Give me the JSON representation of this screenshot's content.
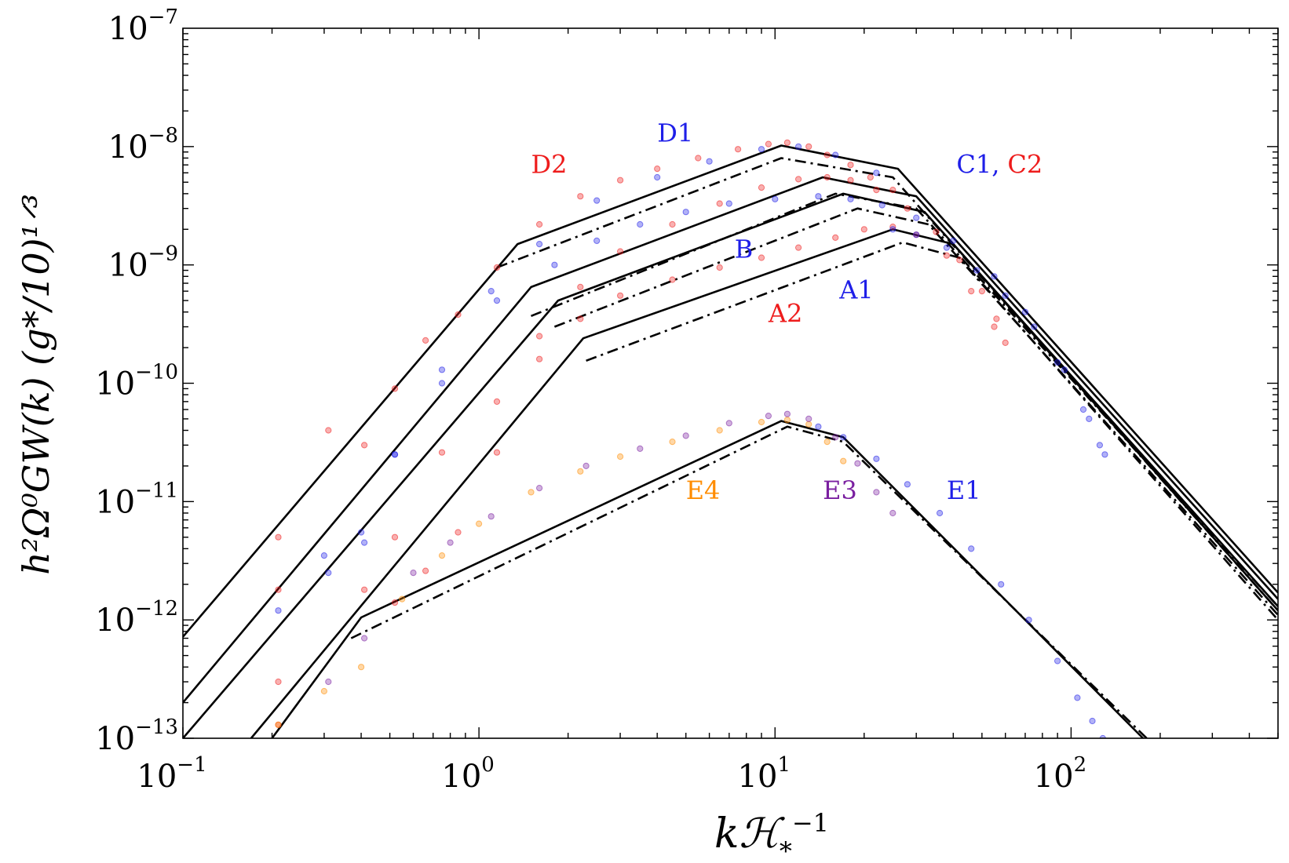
{
  "chart_data": {
    "type": "line",
    "xlabel": "kℋ",
    "xlabel_sub": "*",
    "xlabel_sup": "−1",
    "ylabel": "h²Ω⁰GW(k) (g*/10)¹ᐟ³",
    "x_scale": "log",
    "y_scale": "log",
    "xlim": [
      0.1,
      500
    ],
    "ylim": [
      1e-13,
      1e-07
    ],
    "x_ticks": [
      {
        "value": 0.1,
        "base": "10",
        "exp": "−1"
      },
      {
        "value": 1,
        "base": "10",
        "exp": "0"
      },
      {
        "value": 10,
        "base": "10",
        "exp": "1"
      },
      {
        "value": 100,
        "base": "10",
        "exp": "2"
      }
    ],
    "y_ticks": [
      {
        "value": 1e-07,
        "base": "10",
        "exp": "−7"
      },
      {
        "value": 1e-08,
        "base": "10",
        "exp": "−8"
      },
      {
        "value": 1e-09,
        "base": "10",
        "exp": "−9"
      },
      {
        "value": 1e-10,
        "base": "10",
        "exp": "−10"
      },
      {
        "value": 1e-11,
        "base": "10",
        "exp": "−11"
      },
      {
        "value": 1e-12,
        "base": "10",
        "exp": "−12"
      },
      {
        "value": 1e-13,
        "base": "10",
        "exp": "−13"
      }
    ],
    "grid": false,
    "colors": {
      "blue": "#1f1fe8",
      "red": "#ee1c1c",
      "orange": "#ff8c00",
      "purple": "#7a1fa0",
      "black": "#000000"
    },
    "annotations": [
      {
        "text": "D1",
        "color": "#1f1fe8",
        "x": 4.0,
        "y": 1.1e-08
      },
      {
        "text": "D2",
        "color": "#ee1c1c",
        "x": 1.5,
        "y": 6e-09
      },
      {
        "text": "C1,",
        "color": "#1f1fe8",
        "x": 41,
        "y": 6e-09
      },
      {
        "text": "C2",
        "color": "#ee1c1c",
        "x": 61,
        "y": 6e-09
      },
      {
        "text": "B",
        "color": "#1f1fe8",
        "x": 7.3,
        "y": 1.15e-09
      },
      {
        "text": "A1",
        "color": "#1f1fe8",
        "x": 16.5,
        "y": 5.2e-10
      },
      {
        "text": "A2",
        "color": "#ee1c1c",
        "x": 9.5,
        "y": 3.3e-10
      },
      {
        "text": "E4",
        "color": "#ff8c00",
        "x": 5.0,
        "y": 1.05e-11
      },
      {
        "text": "E3",
        "color": "#7a1fa0",
        "x": 14.5,
        "y": 1.05e-11
      },
      {
        "text": "E1",
        "color": "#1f1fe8",
        "x": 38,
        "y": 1.05e-11
      }
    ],
    "series": [
      {
        "style": "solid",
        "color": "#000000",
        "x": [
          0.1,
          1.35,
          10.5,
          26,
          500
        ],
        "y": [
          7.2e-13,
          1.5e-09,
          1.02e-08,
          6.5e-09,
          1.7e-12
        ]
      },
      {
        "style": "dashdot",
        "color": "#000000",
        "x": [
          1.15,
          10.5,
          25,
          500
        ],
        "y": [
          9.5e-10,
          8e-09,
          5.5e-09,
          1.2e-12
        ]
      },
      {
        "style": "solid",
        "color": "#000000",
        "x": [
          0.1,
          1.5,
          14.5,
          30,
          500
        ],
        "y": [
          2e-13,
          6.5e-10,
          5.5e-09,
          3.8e-09,
          1.5e-12
        ]
      },
      {
        "style": "dashdot",
        "color": "#000000",
        "x": [
          1.5,
          16,
          30,
          500
        ],
        "y": [
          3.7e-10,
          4e-09,
          3e-09,
          1.3e-12
        ]
      },
      {
        "style": "solid",
        "color": "#000000",
        "x": [
          0.1,
          1.85,
          17,
          32,
          500
        ],
        "y": [
          1e-13,
          5e-10,
          4e-09,
          2.8e-09,
          1.3e-12
        ]
      },
      {
        "style": "dashdot",
        "color": "#000000",
        "x": [
          1.8,
          19,
          33,
          500
        ],
        "y": [
          3e-10,
          3e-09,
          2.2e-09,
          1.1e-12
        ]
      },
      {
        "style": "solid",
        "color": "#000000",
        "x": [
          0.17,
          2.25,
          25,
          40,
          500
        ],
        "y": [
          1e-13,
          2.4e-10,
          2e-09,
          1.5e-09,
          1.2e-12
        ]
      },
      {
        "style": "dashdot",
        "color": "#000000",
        "x": [
          2.3,
          27,
          42,
          500
        ],
        "y": [
          1.55e-10,
          1.55e-09,
          1.15e-09,
          1e-12
        ]
      },
      {
        "style": "solid",
        "color": "#000000",
        "x": [
          0.2,
          0.4,
          10.5,
          17,
          175
        ],
        "y": [
          1e-13,
          1.05e-12,
          4.8e-11,
          3.5e-11,
          1e-13
        ]
      },
      {
        "style": "dashdot",
        "color": "#000000",
        "x": [
          0.37,
          11,
          17,
          180
        ],
        "y": [
          7e-13,
          4.3e-11,
          3.2e-11,
          1e-13
        ]
      },
      {
        "style": "markers",
        "color": "#ee1c1c",
        "name": "D2",
        "x": [
          0.21,
          0.21,
          0.31,
          0.41,
          0.52,
          0.66,
          0.85,
          1.15,
          1.6,
          2.2,
          3.0,
          4.0,
          5.5,
          7.5,
          9.5,
          11,
          13,
          15,
          18,
          21,
          25
        ],
        "y": [
          5e-12,
          1.8e-12,
          4e-11,
          3e-11,
          9e-11,
          2.3e-10,
          3.8e-10,
          9.5e-10,
          2.2e-09,
          3.8e-09,
          5.2e-09,
          6.5e-09,
          8e-09,
          9.5e-09,
          1.05e-08,
          1.08e-08,
          1e-08,
          8.5e-09,
          7e-09,
          5.5e-09,
          4.3e-09
        ]
      },
      {
        "style": "markers",
        "color": "#1f1fe8",
        "name": "D1",
        "x": [
          0.3,
          0.4,
          0.52,
          0.75,
          1.1,
          1.6,
          2.5,
          4.0,
          6.0,
          9.0,
          12,
          16,
          22
        ],
        "y": [
          3.5e-12,
          5.5e-12,
          2.5e-11,
          1e-10,
          6e-10,
          1.5e-09,
          3.5e-09,
          5.5e-09,
          7.5e-09,
          9.5e-09,
          1e-08,
          8.5e-09,
          6e-09
        ]
      },
      {
        "style": "markers",
        "color": "#ee1c1c",
        "name": "C2",
        "x": [
          0.21,
          0.21,
          0.52,
          0.66,
          0.85,
          1.15,
          1.6,
          2.2,
          3.0,
          4.5,
          6.5,
          9.0,
          12,
          15,
          18,
          22,
          28,
          35,
          42,
          50,
          56,
          60
        ],
        "y": [
          1.3e-13,
          3e-13,
          1.4e-12,
          2.6e-12,
          5.5e-12,
          2.6e-11,
          2.5e-10,
          6.5e-10,
          1.3e-09,
          2.2e-09,
          3.3e-09,
          4.5e-09,
          5.3e-09,
          5.5e-09,
          5.2e-09,
          4.3e-09,
          3e-09,
          1.9e-09,
          1.1e-09,
          6e-10,
          3.5e-10,
          2.2e-10
        ]
      },
      {
        "style": "markers",
        "color": "#1f1fe8",
        "name": "B",
        "x": [
          0.21,
          0.31,
          0.41,
          0.52,
          0.75,
          1.15,
          1.8,
          2.5,
          3.5,
          5.0,
          7.0,
          10,
          14,
          18,
          23,
          30,
          40,
          55,
          70,
          90,
          110,
          125
        ],
        "y": [
          1.2e-12,
          2.5e-12,
          4.5e-12,
          2.5e-11,
          1.3e-10,
          5e-10,
          1e-09,
          1.6e-09,
          2.2e-09,
          2.8e-09,
          3.3e-09,
          3.6e-09,
          3.8e-09,
          3.6e-09,
          3.2e-09,
          2.5e-09,
          1.6e-09,
          8e-10,
          4e-10,
          1.5e-10,
          6e-11,
          3e-11
        ]
      },
      {
        "style": "markers",
        "color": "#ee1c1c",
        "name": "A2",
        "x": [
          0.41,
          0.52,
          0.75,
          1.15,
          1.6,
          2.2,
          3.0,
          4.5,
          6.5,
          9.0,
          12,
          16,
          20,
          25,
          30,
          38,
          46,
          55
        ],
        "y": [
          1.8e-12,
          5e-12,
          2.6e-11,
          7e-11,
          1.6e-10,
          3.5e-10,
          5.5e-10,
          7.5e-10,
          9.5e-10,
          1.15e-09,
          1.4e-09,
          1.7e-09,
          2e-09,
          2.1e-09,
          1.8e-09,
          1.2e-09,
          6e-10,
          3e-10
        ]
      },
      {
        "style": "markers",
        "color": "#1f1fe8",
        "name": "A1",
        "x": [
          25,
          30,
          38,
          48,
          60,
          75,
          95,
          115,
          130
        ],
        "y": [
          2e-09,
          1.8e-09,
          1.4e-09,
          9e-10,
          5.5e-10,
          3e-10,
          1.3e-10,
          5e-11,
          2.5e-11
        ]
      },
      {
        "style": "markers",
        "color": "#ff8c00",
        "name": "E4",
        "x": [
          0.21,
          0.3,
          0.4,
          0.55,
          0.75,
          1.0,
          1.5,
          2.2,
          3.0,
          4.5,
          6.5,
          9.0,
          11,
          13,
          15,
          17
        ],
        "y": [
          1.3e-13,
          2.5e-13,
          4e-13,
          1.5e-12,
          3.5e-12,
          6.5e-12,
          1.2e-11,
          1.8e-11,
          2.4e-11,
          3.2e-11,
          4e-11,
          4.7e-11,
          4.9e-11,
          4.5e-11,
          3.2e-11,
          2.2e-11
        ]
      },
      {
        "style": "markers",
        "color": "#7a1fa0",
        "name": "E3",
        "x": [
          0.31,
          0.41,
          0.6,
          0.8,
          1.1,
          1.6,
          2.3,
          3.5,
          5.0,
          7.0,
          9.5,
          11,
          13,
          16,
          19,
          22,
          25
        ],
        "y": [
          3e-13,
          7e-13,
          2.5e-12,
          4.5e-12,
          7.5e-12,
          1.3e-11,
          2e-11,
          2.8e-11,
          3.6e-11,
          4.6e-11,
          5.3e-11,
          5.5e-11,
          5e-11,
          3.5e-11,
          2.1e-11,
          1.2e-11,
          8e-12
        ]
      },
      {
        "style": "markers",
        "color": "#1f1fe8",
        "name": "E1",
        "x": [
          14,
          17,
          22,
          28,
          36,
          46,
          58,
          72,
          90,
          105,
          118,
          128
        ],
        "y": [
          4.3e-11,
          3.5e-11,
          2.3e-11,
          1.4e-11,
          8e-12,
          4e-12,
          2e-12,
          1e-12,
          4.5e-13,
          2.2e-13,
          1.4e-13,
          1e-13
        ]
      }
    ]
  }
}
